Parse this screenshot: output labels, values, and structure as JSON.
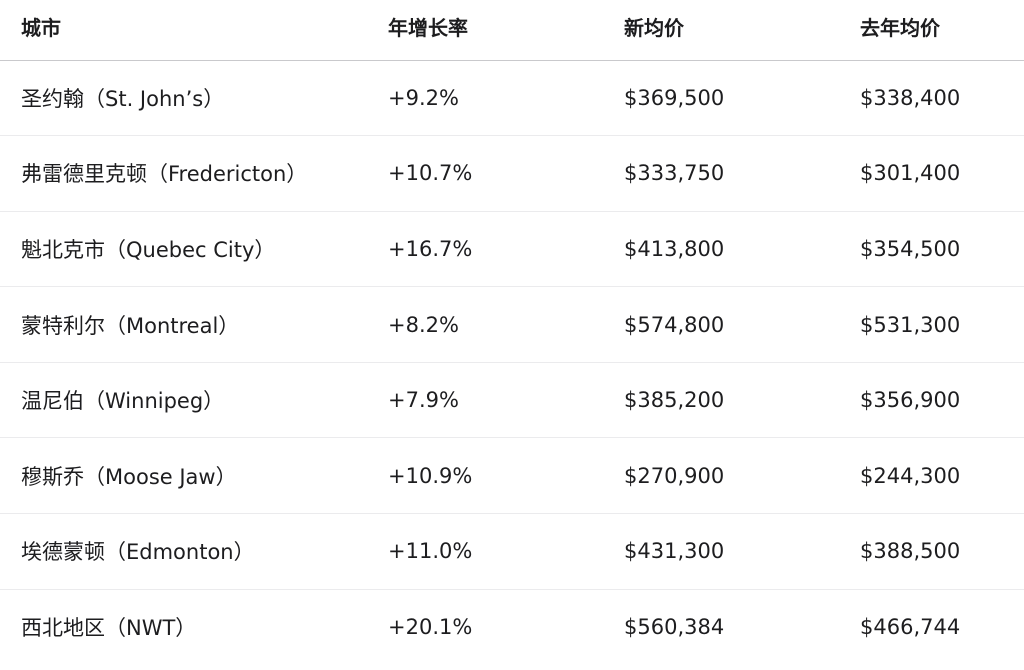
{
  "table": {
    "headers": [
      "城市",
      "年增长率",
      "新均价",
      "去年均价"
    ],
    "rows": [
      [
        "圣约翰（St. John’s）",
        "+9.2%",
        "$369,500",
        "$338,400"
      ],
      [
        "弗雷德里克顿（Fredericton）",
        "+10.7%",
        "$333,750",
        "$301,400"
      ],
      [
        "魁北克市（Quebec City）",
        "+16.7%",
        "$413,800",
        "$354,500"
      ],
      [
        "蒙特利尔（Montreal）",
        "+8.2%",
        "$574,800",
        "$531,300"
      ],
      [
        "温尼伯（Winnipeg）",
        "+7.9%",
        "$385,200",
        "$356,900"
      ],
      [
        "穆斯乔（Moose Jaw）",
        "+10.9%",
        "$270,900",
        "$244,300"
      ],
      [
        "埃德蒙顿（Edmonton）",
        "+11.0%",
        "$431,300",
        "$388,500"
      ],
      [
        "西北地区（NWT）",
        "+20.1%",
        "$560,384",
        "$466,744"
      ]
    ]
  }
}
